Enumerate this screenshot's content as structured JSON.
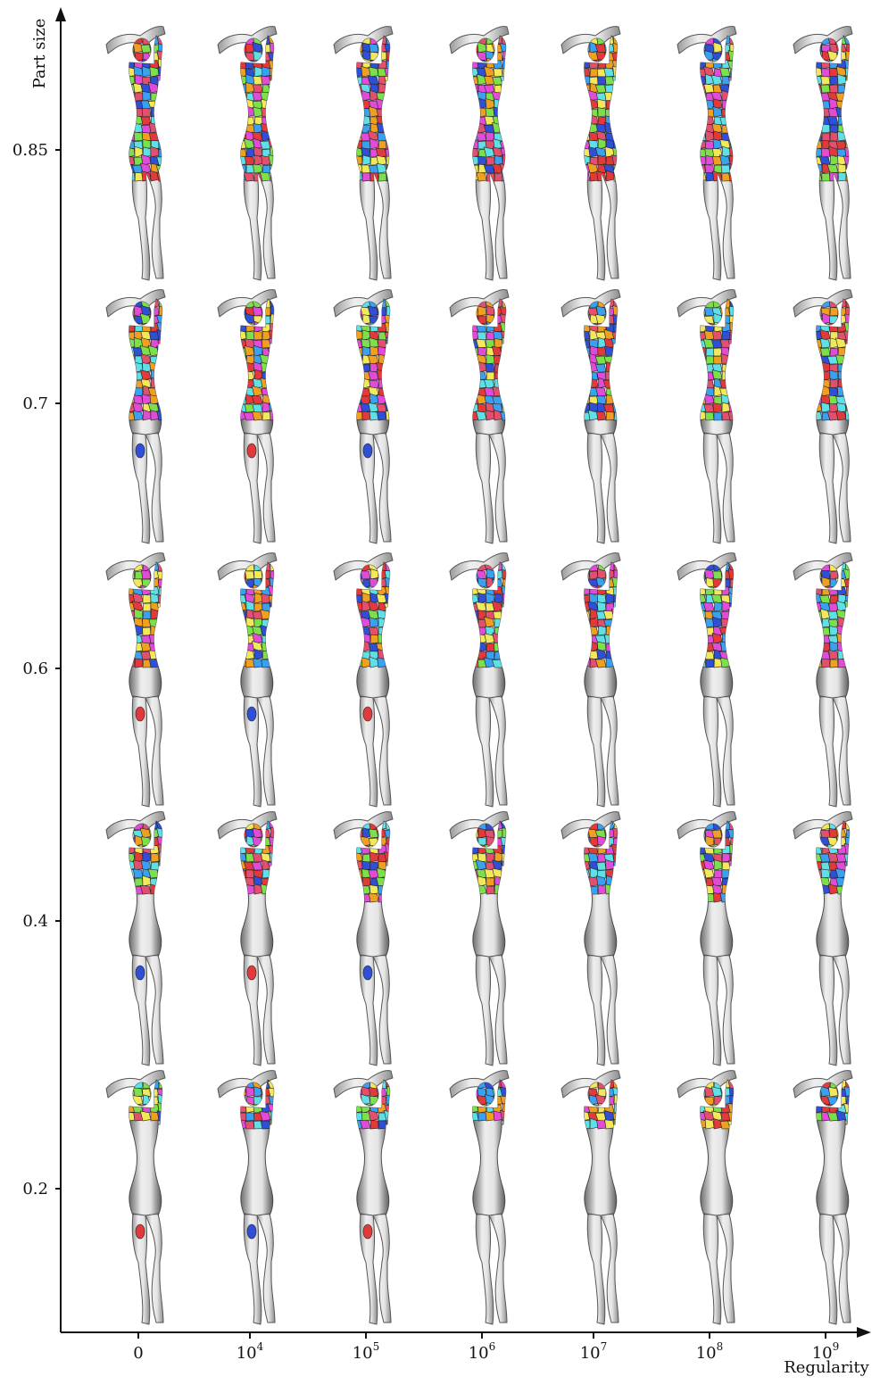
{
  "figure": {
    "y_axis_label": "Part size",
    "x_axis_label": "Regularity",
    "rows": [
      {
        "label": "0.85",
        "coverage": 0.85
      },
      {
        "label": "0.7",
        "coverage": 0.7
      },
      {
        "label": "0.6",
        "coverage": 0.6
      },
      {
        "label": "0.4",
        "coverage": 0.4
      },
      {
        "label": "0.2",
        "coverage": 0.2
      }
    ],
    "columns": [
      {
        "base": "0",
        "exp": ""
      },
      {
        "base": "10",
        "exp": "4"
      },
      {
        "base": "10",
        "exp": "5"
      },
      {
        "base": "10",
        "exp": "6"
      },
      {
        "base": "10",
        "exp": "7"
      },
      {
        "base": "10",
        "exp": "8"
      },
      {
        "base": "10",
        "exp": "9"
      }
    ],
    "palette": [
      "#e23a3a",
      "#3aa0f0",
      "#7ce04a",
      "#e24ad8",
      "#5ee0e6",
      "#f2e85a",
      "#2e4fd6",
      "#f0a020",
      "#e2506e"
    ],
    "model_color": "#dcdcdc",
    "axis_color": "#111111"
  }
}
